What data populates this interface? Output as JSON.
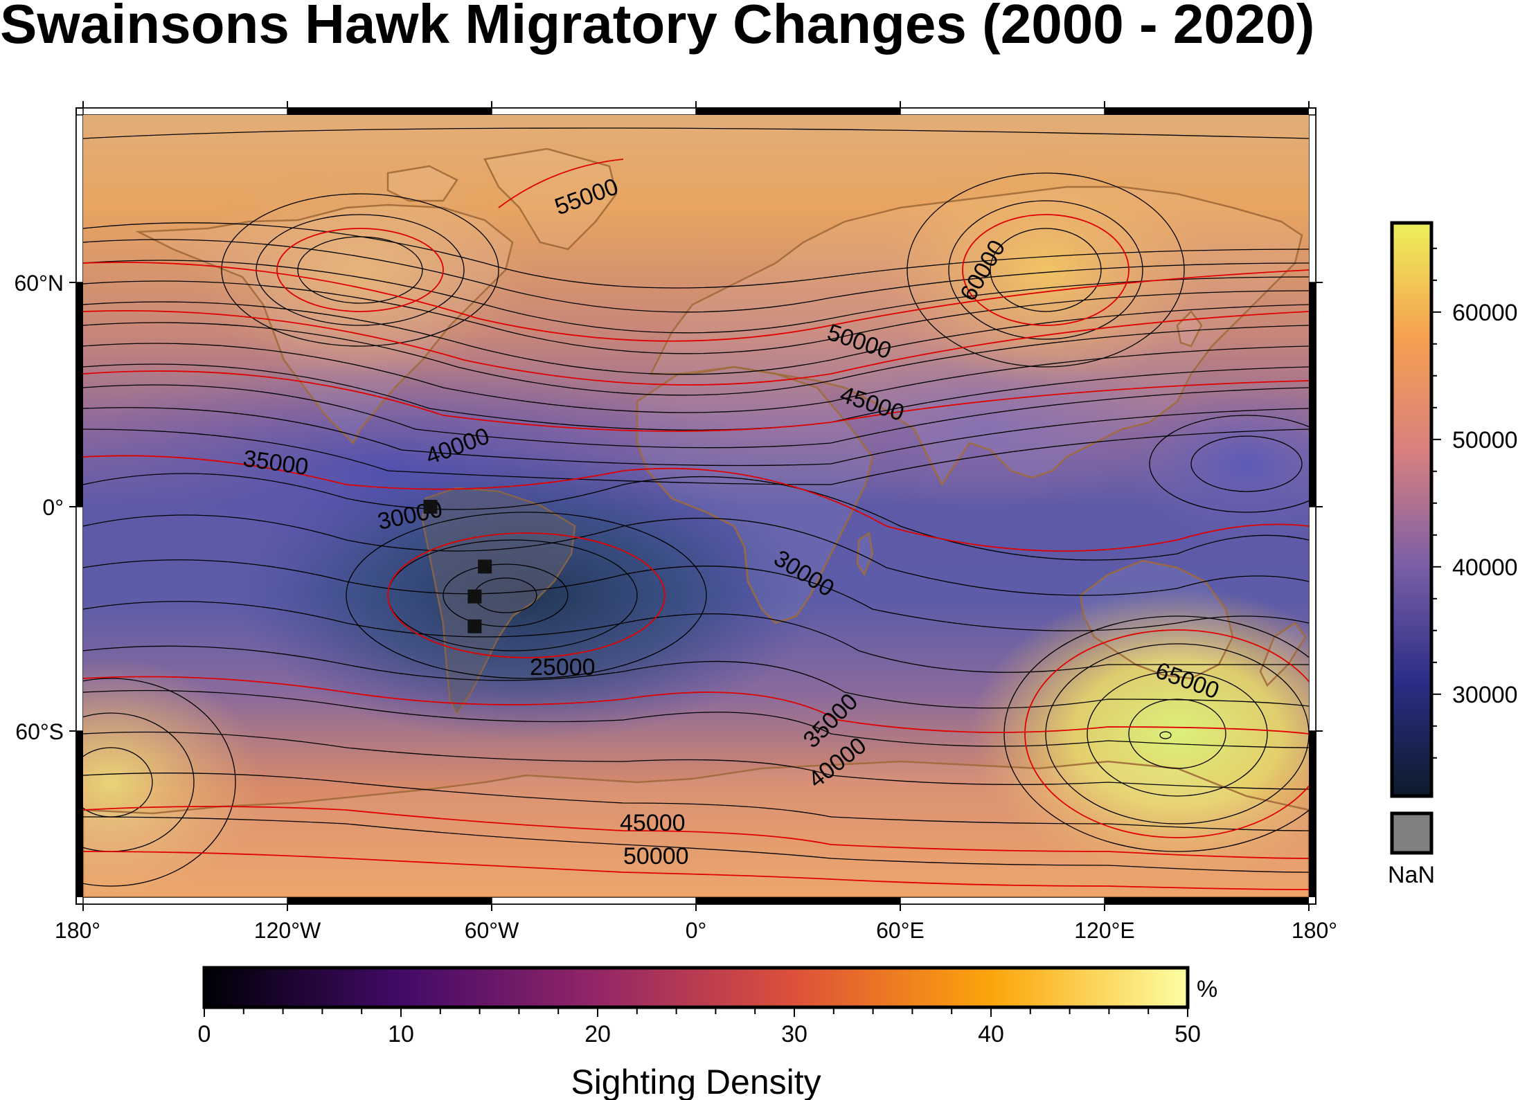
{
  "title": "Swainsons Hawk Migratory Changes (2000 - 2020)",
  "map": {
    "projection": "equirectangular",
    "lon_ticks": [
      "180°",
      "120°W",
      "60°W",
      "0°",
      "60°E",
      "120°E",
      "180°"
    ],
    "lat_ticks": [
      "60°N",
      "0°",
      "60°S"
    ]
  },
  "contour_labels": [
    "55000",
    "60000",
    "50000",
    "45000",
    "40000",
    "35000",
    "30000",
    "30000",
    "25000",
    "65000",
    "35000",
    "40000",
    "45000",
    "50000"
  ],
  "contour_colors": {
    "minor": "#000000",
    "major": "#ff0000"
  },
  "markers": {
    "shape": "square",
    "color": "#111111",
    "points": [
      {
        "lon": -78,
        "lat": 0
      },
      {
        "lon": -62,
        "lat": -16
      },
      {
        "lon": -65,
        "lat": -24
      },
      {
        "lon": -65,
        "lat": -32
      }
    ]
  },
  "right_colorbar": {
    "ticks": [
      "30000",
      "40000",
      "50000",
      "60000"
    ],
    "range": [
      22000,
      67000
    ],
    "nan_label": "NaN",
    "nan_color": "#808080",
    "colors": [
      "#0e1a2b",
      "#2a2e86",
      "#7a5ea6",
      "#d88080",
      "#f5a050",
      "#eef05a"
    ]
  },
  "bottom_colorbar": {
    "ticks": [
      "0",
      "10",
      "20",
      "30",
      "40",
      "50"
    ],
    "range": [
      0,
      50
    ],
    "unit": "%",
    "label": "Sighting Density",
    "colors": [
      "#000004",
      "#420a68",
      "#932667",
      "#dd513a",
      "#fca50a",
      "#fcffa4"
    ]
  }
}
